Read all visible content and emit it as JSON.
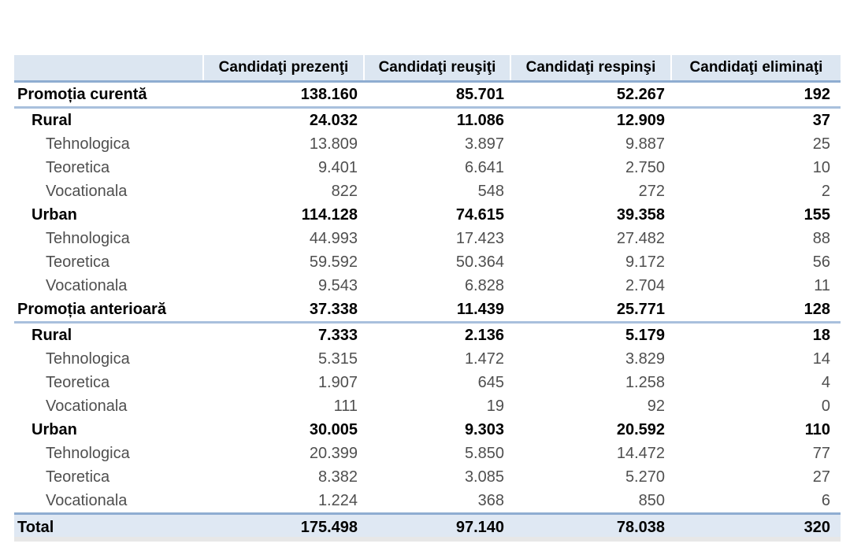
{
  "colors": {
    "header_bg": "#dce6f1",
    "total_bg": "#dfe8f3",
    "border_strong": "#8fadd1",
    "border_light": "#a9c0dd",
    "detail_text": "#4f4f4f",
    "bottom_strip": "#e7e7e7",
    "text": "#000000"
  },
  "chart_data": {
    "type": "table",
    "columns": [
      "",
      "Candidaţi prezenţi",
      "Candidaţi reuşiţi",
      "Candidaţi respinşi",
      "Candidaţi eliminaţi"
    ],
    "rows": [
      {
        "label": "Promoția curentă",
        "level": 0,
        "style": "section",
        "values": [
          "138.160",
          "85.701",
          "52.267",
          "192"
        ]
      },
      {
        "label": "Rural",
        "level": 1,
        "style": "group",
        "values": [
          "24.032",
          "11.086",
          "12.909",
          "37"
        ]
      },
      {
        "label": "Tehnologica",
        "level": 2,
        "style": "detail",
        "values": [
          "13.809",
          "3.897",
          "9.887",
          "25"
        ]
      },
      {
        "label": "Teoretica",
        "level": 2,
        "style": "detail",
        "values": [
          "9.401",
          "6.641",
          "2.750",
          "10"
        ]
      },
      {
        "label": "Vocationala",
        "level": 2,
        "style": "detail",
        "values": [
          "822",
          "548",
          "272",
          "2"
        ]
      },
      {
        "label": "Urban",
        "level": 1,
        "style": "group",
        "values": [
          "114.128",
          "74.615",
          "39.358",
          "155"
        ]
      },
      {
        "label": "Tehnologica",
        "level": 2,
        "style": "detail",
        "values": [
          "44.993",
          "17.423",
          "27.482",
          "88"
        ]
      },
      {
        "label": "Teoretica",
        "level": 2,
        "style": "detail",
        "values": [
          "59.592",
          "50.364",
          "9.172",
          "56"
        ]
      },
      {
        "label": "Vocationala",
        "level": 2,
        "style": "detail",
        "values": [
          "9.543",
          "6.828",
          "2.704",
          "11"
        ]
      },
      {
        "label": "Promoția anterioară",
        "level": 0,
        "style": "section",
        "values": [
          "37.338",
          "11.439",
          "25.771",
          "128"
        ]
      },
      {
        "label": "Rural",
        "level": 1,
        "style": "group",
        "values": [
          "7.333",
          "2.136",
          "5.179",
          "18"
        ]
      },
      {
        "label": "Tehnologica",
        "level": 2,
        "style": "detail",
        "values": [
          "5.315",
          "1.472",
          "3.829",
          "14"
        ]
      },
      {
        "label": "Teoretica",
        "level": 2,
        "style": "detail",
        "values": [
          "1.907",
          "645",
          "1.258",
          "4"
        ]
      },
      {
        "label": "Vocationala",
        "level": 2,
        "style": "detail",
        "values": [
          "111",
          "19",
          "92",
          "0"
        ]
      },
      {
        "label": "Urban",
        "level": 1,
        "style": "group",
        "values": [
          "30.005",
          "9.303",
          "20.592",
          "110"
        ]
      },
      {
        "label": "Tehnologica",
        "level": 2,
        "style": "detail",
        "values": [
          "20.399",
          "5.850",
          "14.472",
          "77"
        ]
      },
      {
        "label": "Teoretica",
        "level": 2,
        "style": "detail",
        "values": [
          "8.382",
          "3.085",
          "5.270",
          "27"
        ]
      },
      {
        "label": "Vocationala",
        "level": 2,
        "style": "detail",
        "values": [
          "1.224",
          "368",
          "850",
          "6"
        ]
      },
      {
        "label": "Total",
        "level": 0,
        "style": "total",
        "values": [
          "175.498",
          "97.140",
          "78.038",
          "320"
        ]
      }
    ]
  }
}
